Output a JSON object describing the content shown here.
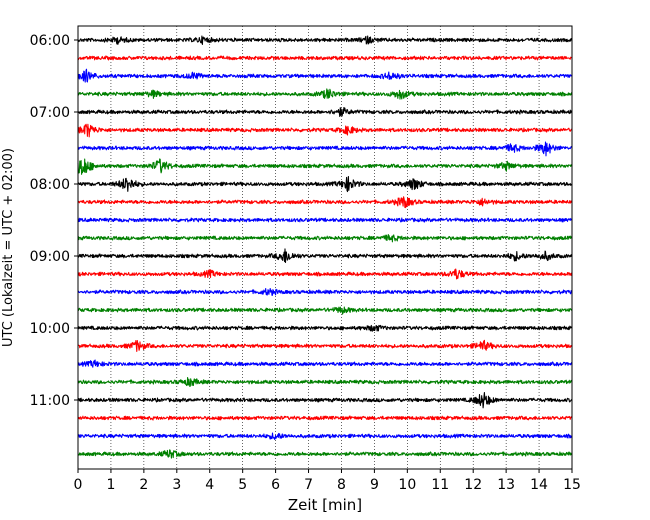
{
  "chart_data": {
    "type": "line",
    "title": "",
    "xlabel": "Zeit  [min]",
    "ylabel": "UTC (Lokalzeit = UTC + 02:00)",
    "xlim": [
      0,
      15
    ],
    "x_ticks": [
      "0",
      "1",
      "2",
      "3",
      "4",
      "5",
      "6",
      "7",
      "8",
      "9",
      "10",
      "11",
      "12",
      "13",
      "14",
      "15"
    ],
    "y_tick_labels": [
      "06:00",
      "07:00",
      "08:00",
      "09:00",
      "10:00",
      "11:00"
    ],
    "rows_per_hour": 4,
    "row_minutes": 15,
    "grid": "vertical dotted at each minute",
    "colors": [
      "#000000",
      "#ff0000",
      "#0000ff",
      "#008000"
    ],
    "traces": [
      {
        "start": "06:00",
        "color": "#000000",
        "amplitude": 2,
        "events": [
          [
            1.2,
            3
          ],
          [
            3.8,
            3
          ],
          [
            8.8,
            3
          ]
        ]
      },
      {
        "start": "06:15",
        "color": "#ff0000",
        "amplitude": 2,
        "events": []
      },
      {
        "start": "06:30",
        "color": "#0000ff",
        "amplitude": 2,
        "events": [
          [
            0.25,
            6
          ],
          [
            3.5,
            3
          ],
          [
            9.5,
            4
          ]
        ]
      },
      {
        "start": "06:45",
        "color": "#008000",
        "amplitude": 2,
        "events": [
          [
            2.3,
            3
          ],
          [
            7.6,
            5
          ],
          [
            9.8,
            5
          ]
        ]
      },
      {
        "start": "07:00",
        "color": "#000000",
        "amplitude": 2,
        "events": [
          [
            8.0,
            4
          ]
        ]
      },
      {
        "start": "07:15",
        "color": "#ff0000",
        "amplitude": 2,
        "events": [
          [
            0.3,
            7
          ],
          [
            8.2,
            4
          ]
        ]
      },
      {
        "start": "07:30",
        "color": "#0000ff",
        "amplitude": 2,
        "events": [
          [
            13.2,
            4
          ],
          [
            14.2,
            7
          ]
        ]
      },
      {
        "start": "07:45",
        "color": "#008000",
        "amplitude": 2,
        "events": [
          [
            0.15,
            11
          ],
          [
            2.5,
            7
          ],
          [
            13.0,
            4
          ]
        ]
      },
      {
        "start": "08:00",
        "color": "#000000",
        "amplitude": 2,
        "events": [
          [
            1.5,
            8
          ],
          [
            8.2,
            7
          ],
          [
            10.2,
            6
          ]
        ]
      },
      {
        "start": "08:15",
        "color": "#ff0000",
        "amplitude": 2,
        "events": [
          [
            9.9,
            6
          ],
          [
            12.3,
            3
          ]
        ]
      },
      {
        "start": "08:30",
        "color": "#0000ff",
        "amplitude": 2,
        "events": []
      },
      {
        "start": "08:45",
        "color": "#008000",
        "amplitude": 2,
        "events": [
          [
            9.5,
            3
          ]
        ]
      },
      {
        "start": "09:00",
        "color": "#000000",
        "amplitude": 2,
        "events": [
          [
            6.3,
            7
          ],
          [
            13.3,
            4
          ],
          [
            14.2,
            4
          ]
        ]
      },
      {
        "start": "09:15",
        "color": "#ff0000",
        "amplitude": 2,
        "events": [
          [
            4.0,
            3
          ],
          [
            11.5,
            5
          ]
        ]
      },
      {
        "start": "09:30",
        "color": "#0000ff",
        "amplitude": 2,
        "events": [
          [
            5.8,
            3
          ]
        ]
      },
      {
        "start": "09:45",
        "color": "#008000",
        "amplitude": 2,
        "events": [
          [
            8.0,
            3
          ]
        ]
      },
      {
        "start": "10:00",
        "color": "#000000",
        "amplitude": 2,
        "events": [
          [
            9.0,
            3
          ]
        ]
      },
      {
        "start": "10:15",
        "color": "#ff0000",
        "amplitude": 2,
        "events": [
          [
            1.8,
            5
          ],
          [
            12.3,
            5
          ]
        ]
      },
      {
        "start": "10:30",
        "color": "#0000ff",
        "amplitude": 2,
        "events": [
          [
            0.5,
            3
          ]
        ]
      },
      {
        "start": "10:45",
        "color": "#008000",
        "amplitude": 2,
        "events": [
          [
            3.4,
            4
          ]
        ]
      },
      {
        "start": "11:00",
        "color": "#000000",
        "amplitude": 2,
        "events": [
          [
            12.3,
            8
          ]
        ]
      },
      {
        "start": "11:15",
        "color": "#ff0000",
        "amplitude": 2,
        "events": []
      },
      {
        "start": "11:30",
        "color": "#0000ff",
        "amplitude": 2,
        "events": [
          [
            6.0,
            3
          ]
        ]
      },
      {
        "start": "11:45",
        "color": "#008000",
        "amplitude": 2,
        "events": [
          [
            2.8,
            4
          ]
        ]
      }
    ]
  }
}
